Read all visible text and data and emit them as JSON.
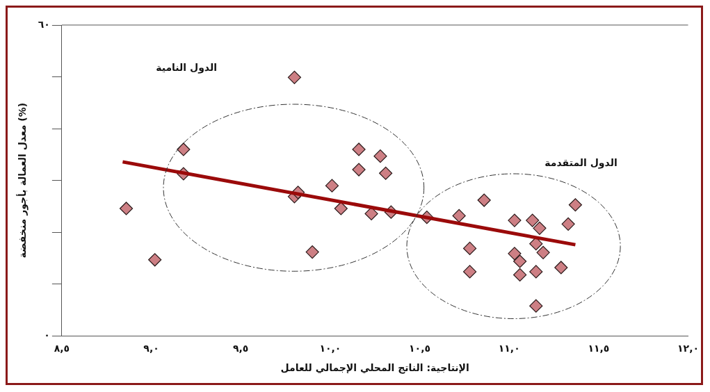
{
  "chart_data": {
    "type": "scatter",
    "xlabel": "الإنتاجية: الناتج المحلي الإجمالي للعامل",
    "ylabel": "معدل العمالة بأجور منخفضة (%)",
    "xlim": [
      8.5,
      12.0
    ],
    "xticks": [
      {
        "value": 8.5,
        "label": "٨,٥"
      },
      {
        "value": 9.0,
        "label": "٩,٠"
      },
      {
        "value": 9.5,
        "label": "٩,٥"
      },
      {
        "value": 10.0,
        "label": "١٠,٠"
      },
      {
        "value": 10.5,
        "label": "١٠,٥"
      },
      {
        "value": 11.0,
        "label": "١١,٠"
      },
      {
        "value": 11.5,
        "label": "١١,٥"
      },
      {
        "value": 12.0,
        "label": "١٢,٠"
      }
    ],
    "ylim": [
      0,
      60
    ],
    "yticks": [
      {
        "value": 0,
        "label": "٠"
      },
      {
        "value": 10,
        "label": null
      },
      {
        "value": 20,
        "label": null
      },
      {
        "value": 30,
        "label": null
      },
      {
        "value": 40,
        "label": null
      },
      {
        "value": 50,
        "label": null
      },
      {
        "value": 60,
        "label": "٦٠"
      }
    ],
    "grid": false,
    "legend": false,
    "marker": "diamond",
    "series": [
      {
        "color": "#cd7f84",
        "x": [
          8.86,
          9.02,
          9.18,
          9.18,
          9.8,
          9.8,
          9.82,
          9.9,
          10.01,
          10.06,
          10.16,
          10.16,
          10.23,
          10.28,
          10.31,
          10.34,
          10.54,
          10.72,
          10.78,
          10.78,
          10.86,
          11.03,
          11.03,
          11.06,
          11.06,
          11.13,
          11.17,
          11.15,
          11.15,
          11.19,
          11.15,
          11.29,
          11.33,
          11.37
        ],
        "values": [
          24.6,
          14.7,
          36.0,
          31.3,
          49.9,
          26.9,
          27.7,
          16.2,
          29.0,
          24.6,
          36.0,
          32.1,
          23.6,
          34.7,
          31.4,
          23.9,
          22.9,
          23.2,
          16.9,
          12.4,
          26.2,
          22.3,
          15.9,
          14.4,
          11.8,
          22.3,
          20.8,
          17.8,
          12.4,
          16.1,
          5.8,
          13.2,
          21.6,
          25.3
        ]
      },
      {
        "type": "line",
        "color": "#9b0a0a",
        "marker": "none",
        "x": [
          8.84,
          11.37
        ],
        "values": [
          33.6,
          17.6
        ]
      }
    ],
    "annotations": [
      "الدول النامية",
      "الدول المتقدمة"
    ]
  }
}
